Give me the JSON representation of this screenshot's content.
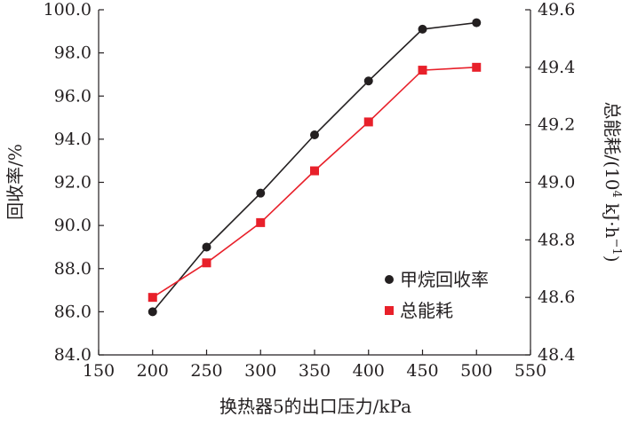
{
  "chart_data": {
    "type": "line",
    "x": [
      200,
      250,
      300,
      350,
      400,
      450,
      500
    ],
    "xlabel": "换热器5的出口压力/kPa",
    "xlim": [
      150,
      550
    ],
    "x_ticks": [
      "150",
      "200",
      "250",
      "300",
      "350",
      "400",
      "450",
      "500",
      "550"
    ],
    "ylabel_left": "回收率/%",
    "ylim_left": [
      84.0,
      100.0
    ],
    "y_ticks_left": [
      "84.0",
      "86.0",
      "88.0",
      "90.0",
      "92.0",
      "94.0",
      "96.0",
      "98.0",
      "100.0"
    ],
    "ylabel_right": {
      "prefix": "总能耗/(10",
      "sup1": "4",
      "middle": " kJ·h",
      "sup2": "−1",
      "suffix": ")"
    },
    "ylim_right": [
      48.4,
      49.6
    ],
    "y_ticks_right": [
      "48.4",
      "48.6",
      "48.8",
      "49.0",
      "49.2",
      "49.4",
      "49.6"
    ],
    "grid": false,
    "legend_position": "bottom-right",
    "series": [
      {
        "name": "甲烷回收率",
        "axis": "left",
        "marker": "circle",
        "color": "#231f20",
        "values": [
          86.0,
          89.0,
          91.5,
          94.2,
          96.7,
          99.1,
          99.4
        ]
      },
      {
        "name": "总能耗",
        "axis": "right",
        "marker": "square",
        "color": "#e8202a",
        "values": [
          48.6,
          48.72,
          48.86,
          49.04,
          49.21,
          49.39,
          49.4
        ]
      }
    ]
  }
}
